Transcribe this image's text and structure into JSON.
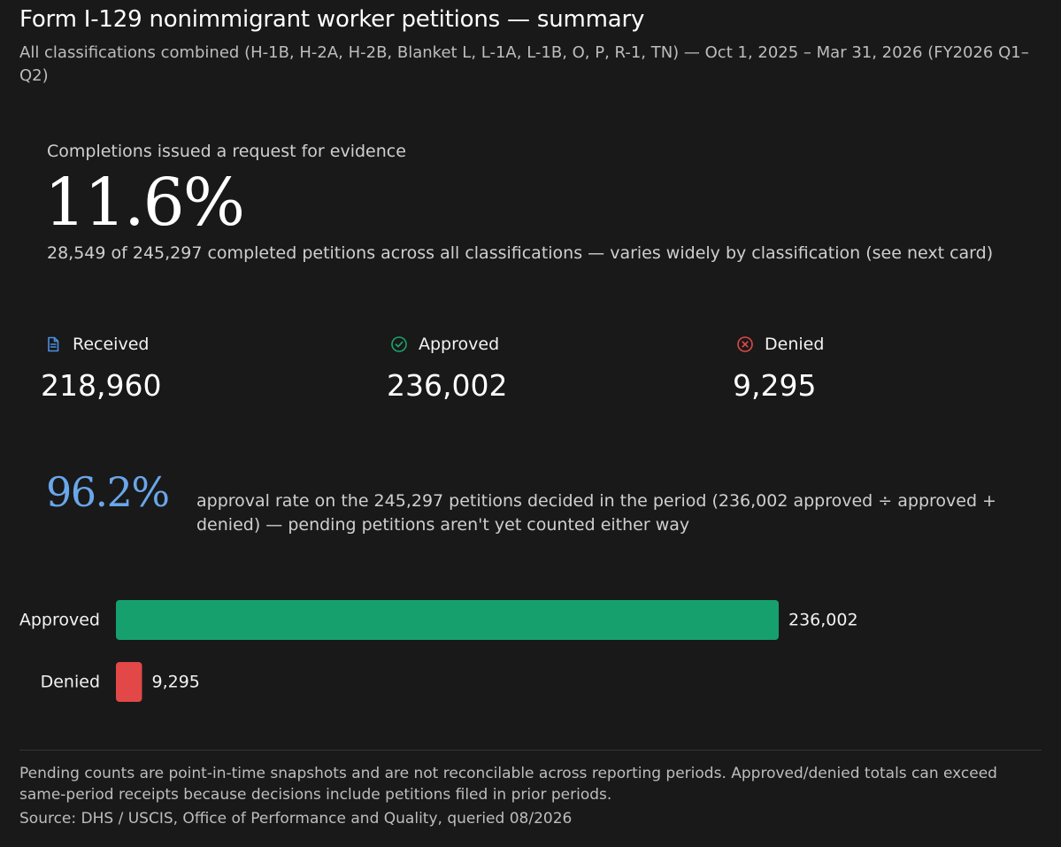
{
  "header": {
    "title": "Form I-129 nonimmigrant worker petitions — summary",
    "subtitle": "All classifications combined (H-1B, H-2A, H-2B, Blanket L, L-1A, L-1B, O, P, R-1, TN) — Oct 1, 2025 – Mar 31, 2026 (FY2026 Q1–Q2)"
  },
  "rfe": {
    "label": "Completions issued a request for evidence",
    "value": "11.6%",
    "note": "28,549 of 245,297 completed petitions across all classifications — varies widely by classification (see next card)"
  },
  "stats": [
    {
      "label": "Received",
      "value": "218,960",
      "icon": "document-icon",
      "color": "#4a90e2"
    },
    {
      "label": "Approved",
      "value": "236,002",
      "icon": "check-circle-icon",
      "color": "#1aa470"
    },
    {
      "label": "Denied",
      "value": "9,295",
      "icon": "x-circle-icon",
      "color": "#e04848"
    }
  ],
  "approval_rate": {
    "value": "96.2%",
    "note": "approval rate on the 245,297 petitions decided in the period (236,002 approved ÷ approved + denied) — pending petitions aren't yet counted either way"
  },
  "chart_data": {
    "type": "bar",
    "orientation": "horizontal",
    "categories": [
      "Approved",
      "Denied"
    ],
    "values": [
      236002,
      9295
    ],
    "value_labels": [
      "236,002",
      "9,295"
    ],
    "colors": [
      "#16a06e",
      "#e24848"
    ],
    "title": "",
    "xlabel": "",
    "ylabel": "",
    "xlim": [
      0,
      236002
    ],
    "grid": false,
    "legend": "none"
  },
  "footer": {
    "note": "Pending counts are point-in-time snapshots and are not reconcilable across reporting periods. Approved/denied totals can exceed same-period receipts because decisions include petitions filed in prior periods.",
    "source": "Source: DHS / USCIS, Office of Performance and Quality, queried 08/2026"
  }
}
